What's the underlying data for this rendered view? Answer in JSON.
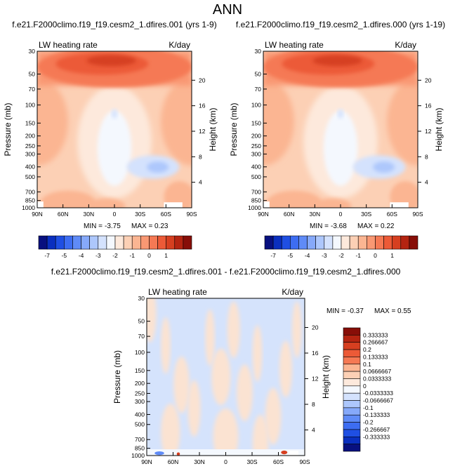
{
  "figure": {
    "title": "ANN"
  },
  "colors": {
    "cbar_top": [
      "#08107f",
      "#0a2fbf",
      "#1f4fe3",
      "#3d6df2",
      "#5f8bf7",
      "#86a9fa",
      "#adc7fc",
      "#d4e2fd",
      "#f4f8fe",
      "#fde9dc",
      "#fcd0b5",
      "#fbb592",
      "#f99873",
      "#f57954",
      "#ec5a37",
      "#d63f20",
      "#b42411",
      "#870e08"
    ],
    "cbar_diff": [
      "#870e08",
      "#b42411",
      "#d63f20",
      "#ec5a37",
      "#f57954",
      "#fbb592",
      "#fcd0b5",
      "#fde9dc",
      "#f4f8fe",
      "#d4e2fd",
      "#adc7fc",
      "#86a9fa",
      "#5f8bf7",
      "#3d6df2",
      "#1f4fe3",
      "#0a2fbf",
      "#08107f"
    ]
  },
  "chart_data": [
    {
      "type": "heatmap",
      "title": "f.e21.F2000climo.f19_f19.cesm2_1.dfires.001 (yrs 1-9)",
      "left_string": "LW heating rate",
      "right_string": "K/day",
      "xlabel": "",
      "ylabel": "Pressure (mb)",
      "y2label": "Height (km)",
      "x_ticks": [
        "90N",
        "60N",
        "30N",
        "0",
        "30S",
        "60S",
        "90S"
      ],
      "y_ticks": [
        "30",
        "50",
        "70",
        "100",
        "150",
        "200",
        "250",
        "300",
        "400",
        "500",
        "700",
        "850",
        "1000"
      ],
      "y2_ticks": [
        "20",
        "16",
        "12",
        "8",
        "4"
      ],
      "stats": {
        "min_label": "MIN =",
        "min": "-3.75",
        "max_label": "MAX =",
        "max": "0.23"
      },
      "colorbar_labels": [
        "-7",
        "-5",
        "-4",
        "-3",
        "-2",
        "-1",
        "0",
        "1"
      ]
    },
    {
      "type": "heatmap",
      "title": "f.e21.F2000climo.f19_f19.cesm2_1.dfires.000 (yrs 1-19)",
      "left_string": "LW heating rate",
      "right_string": "K/day",
      "xlabel": "",
      "ylabel": "Pressure (mb)",
      "y2label": "Height (km)",
      "x_ticks": [
        "90N",
        "60N",
        "30N",
        "0",
        "30S",
        "60S",
        "90S"
      ],
      "y_ticks": [
        "30",
        "50",
        "70",
        "100",
        "150",
        "200",
        "250",
        "300",
        "400",
        "500",
        "700",
        "850",
        "1000"
      ],
      "y2_ticks": [
        "20",
        "16",
        "12",
        "8",
        "4"
      ],
      "stats": {
        "min_label": "MIN =",
        "min": "-3.68",
        "max_label": "MAX =",
        "max": "0.22"
      },
      "colorbar_labels": [
        "-7",
        "-5",
        "-4",
        "-3",
        "-2",
        "-1",
        "0",
        "1"
      ]
    },
    {
      "type": "heatmap",
      "title": "f.e21.F2000climo.f19_f19.cesm2_1.dfires.001 - f.e21.F2000climo.f19_f19.cesm2_1.dfires.000",
      "left_string": "LW heating rate",
      "right_string": "K/day",
      "xlabel": "",
      "ylabel": "Pressure (mb)",
      "y2label": "Height (km)",
      "x_ticks": [
        "90N",
        "60N",
        "30N",
        "0",
        "30S",
        "60S",
        "90S"
      ],
      "y_ticks": [
        "30",
        "50",
        "70",
        "100",
        "150",
        "200",
        "250",
        "300",
        "400",
        "500",
        "700",
        "850",
        "1000"
      ],
      "y2_ticks": [
        "20",
        "16",
        "12",
        "8",
        "4"
      ],
      "stats": {
        "min_label": "MIN =",
        "min": "-0.37",
        "max_label": "MAX =",
        "max": "0.55"
      },
      "colorbar_labels": [
        "0.333333",
        "0.266667",
        "0.2",
        "0.133333",
        "0.1",
        "0.0666667",
        "0.0333333",
        "0",
        "-0.0333333",
        "-0.0666667",
        "-0.1",
        "-0.133333",
        "-0.2",
        "-0.266667",
        "-0.333333"
      ]
    }
  ]
}
